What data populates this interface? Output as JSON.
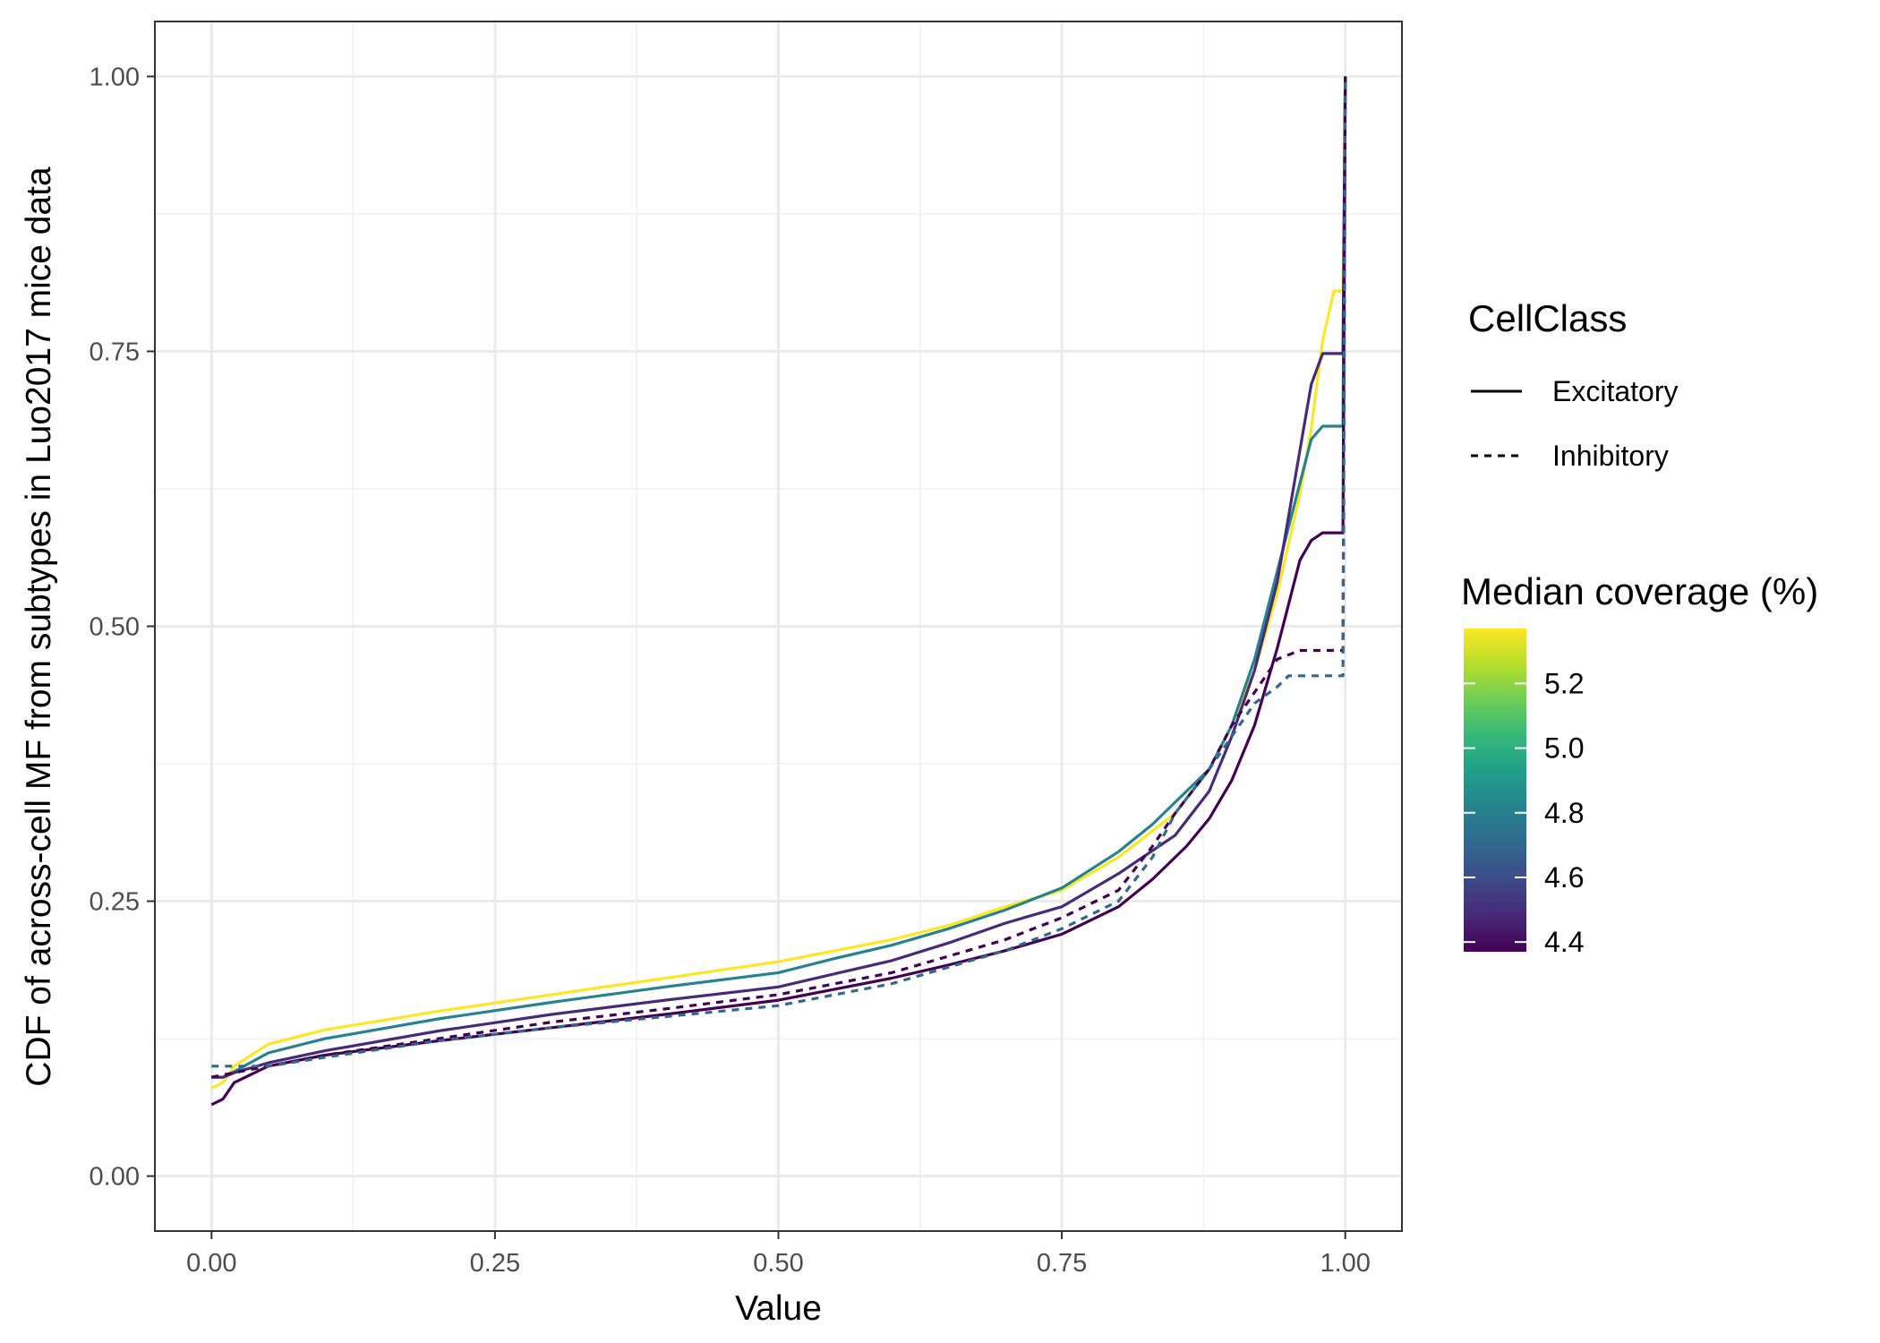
{
  "chart_data": {
    "type": "line",
    "title": "",
    "xlabel": "Value",
    "ylabel": "CDF of across-cell MF from subtypes in Luo2017 mice data",
    "xlim": [
      -0.05,
      1.05
    ],
    "ylim": [
      -0.05,
      1.05
    ],
    "x_ticks": [
      "0.00",
      "0.25",
      "0.50",
      "0.75",
      "1.00"
    ],
    "y_ticks": [
      "0.00",
      "0.25",
      "0.50",
      "0.75",
      "1.00"
    ],
    "grid": true,
    "legend_position": "right",
    "legend_linetype": {
      "title": "CellClass",
      "entries": [
        {
          "label": "Excitatory",
          "linetype": "solid"
        },
        {
          "label": "Inhibitory",
          "linetype": "dashed"
        }
      ]
    },
    "legend_color": {
      "title": "Median coverage (%)",
      "ticks": [
        "4.4",
        "4.6",
        "4.8",
        "5.0",
        "5.2"
      ],
      "range": [
        4.37,
        5.37
      ],
      "colors": [
        "#440154",
        "#482878",
        "#3e4a89",
        "#31688e",
        "#26828e",
        "#1f9e89",
        "#35b779",
        "#6ece58",
        "#b5de2b",
        "#fde725"
      ]
    },
    "series": [
      {
        "class": "Excitatory",
        "coverage": 5.37,
        "color": "#fde725",
        "linetype": "solid",
        "x": [
          0,
          0.01,
          0.02,
          0.05,
          0.1,
          0.2,
          0.3,
          0.4,
          0.5,
          0.55,
          0.6,
          0.65,
          0.7,
          0.75,
          0.8,
          0.85,
          0.88,
          0.9,
          0.92,
          0.94,
          0.96,
          0.97,
          0.98,
          0.99,
          0.998,
          1.0
        ],
        "y": [
          0.08,
          0.085,
          0.1,
          0.12,
          0.133,
          0.15,
          0.165,
          0.18,
          0.195,
          0.205,
          0.215,
          0.228,
          0.245,
          0.26,
          0.29,
          0.33,
          0.37,
          0.41,
          0.46,
          0.53,
          0.62,
          0.68,
          0.76,
          0.805,
          0.805,
          1.0
        ]
      },
      {
        "class": "Excitatory",
        "coverage": 4.8,
        "color": "#26828e",
        "linetype": "solid",
        "x": [
          0,
          0.01,
          0.02,
          0.05,
          0.1,
          0.2,
          0.3,
          0.4,
          0.5,
          0.55,
          0.6,
          0.65,
          0.7,
          0.75,
          0.8,
          0.83,
          0.85,
          0.88,
          0.9,
          0.92,
          0.94,
          0.96,
          0.97,
          0.98,
          0.998,
          1.0
        ],
        "y": [
          0.09,
          0.09,
          0.095,
          0.112,
          0.125,
          0.143,
          0.158,
          0.172,
          0.185,
          0.198,
          0.21,
          0.225,
          0.242,
          0.262,
          0.295,
          0.32,
          0.34,
          0.37,
          0.41,
          0.47,
          0.55,
          0.63,
          0.67,
          0.682,
          0.682,
          1.0
        ]
      },
      {
        "class": "Excitatory",
        "coverage": 4.5,
        "color": "#472a7a",
        "linetype": "solid",
        "x": [
          0,
          0.01,
          0.02,
          0.05,
          0.1,
          0.2,
          0.3,
          0.4,
          0.5,
          0.55,
          0.6,
          0.65,
          0.7,
          0.75,
          0.8,
          0.85,
          0.88,
          0.9,
          0.92,
          0.94,
          0.95,
          0.96,
          0.97,
          0.98,
          0.998,
          1.0
        ],
        "y": [
          0.09,
          0.09,
          0.094,
          0.103,
          0.114,
          0.132,
          0.147,
          0.16,
          0.172,
          0.184,
          0.196,
          0.212,
          0.23,
          0.245,
          0.275,
          0.31,
          0.35,
          0.4,
          0.46,
          0.54,
          0.6,
          0.66,
          0.72,
          0.748,
          0.748,
          1.0
        ]
      },
      {
        "class": "Excitatory",
        "coverage": 4.42,
        "color": "#440154",
        "linetype": "solid",
        "x": [
          0,
          0.01,
          0.02,
          0.05,
          0.1,
          0.2,
          0.3,
          0.4,
          0.5,
          0.55,
          0.6,
          0.65,
          0.7,
          0.75,
          0.8,
          0.83,
          0.86,
          0.88,
          0.9,
          0.92,
          0.94,
          0.95,
          0.96,
          0.97,
          0.98,
          0.998,
          1.0
        ],
        "y": [
          0.065,
          0.07,
          0.085,
          0.1,
          0.11,
          0.123,
          0.135,
          0.147,
          0.16,
          0.17,
          0.18,
          0.192,
          0.205,
          0.22,
          0.245,
          0.27,
          0.3,
          0.325,
          0.36,
          0.41,
          0.48,
          0.52,
          0.56,
          0.578,
          0.585,
          0.585,
          1.0
        ]
      },
      {
        "class": "Inhibitory",
        "coverage": 4.42,
        "color": "#440154",
        "linetype": "dashed",
        "x": [
          0,
          0.02,
          0.05,
          0.1,
          0.2,
          0.3,
          0.4,
          0.5,
          0.55,
          0.6,
          0.65,
          0.7,
          0.75,
          0.8,
          0.83,
          0.85,
          0.88,
          0.9,
          0.92,
          0.94,
          0.96,
          0.98,
          0.998,
          1.0
        ],
        "y": [
          0.09,
          0.094,
          0.1,
          0.11,
          0.125,
          0.14,
          0.152,
          0.165,
          0.175,
          0.185,
          0.2,
          0.215,
          0.235,
          0.26,
          0.3,
          0.33,
          0.37,
          0.41,
          0.44,
          0.47,
          0.478,
          0.478,
          0.478,
          1.0
        ]
      },
      {
        "class": "Inhibitory",
        "coverage": 4.65,
        "color": "#31688e",
        "linetype": "dashed",
        "x": [
          0,
          0.02,
          0.05,
          0.1,
          0.2,
          0.3,
          0.4,
          0.5,
          0.55,
          0.6,
          0.65,
          0.7,
          0.75,
          0.8,
          0.83,
          0.85,
          0.88,
          0.9,
          0.92,
          0.94,
          0.95,
          0.96,
          0.98,
          0.998,
          1.0
        ],
        "y": [
          0.1,
          0.1,
          0.1,
          0.108,
          0.123,
          0.135,
          0.145,
          0.155,
          0.165,
          0.175,
          0.19,
          0.205,
          0.225,
          0.25,
          0.29,
          0.33,
          0.37,
          0.4,
          0.43,
          0.445,
          0.455,
          0.455,
          0.455,
          0.455,
          1.0
        ]
      }
    ]
  }
}
